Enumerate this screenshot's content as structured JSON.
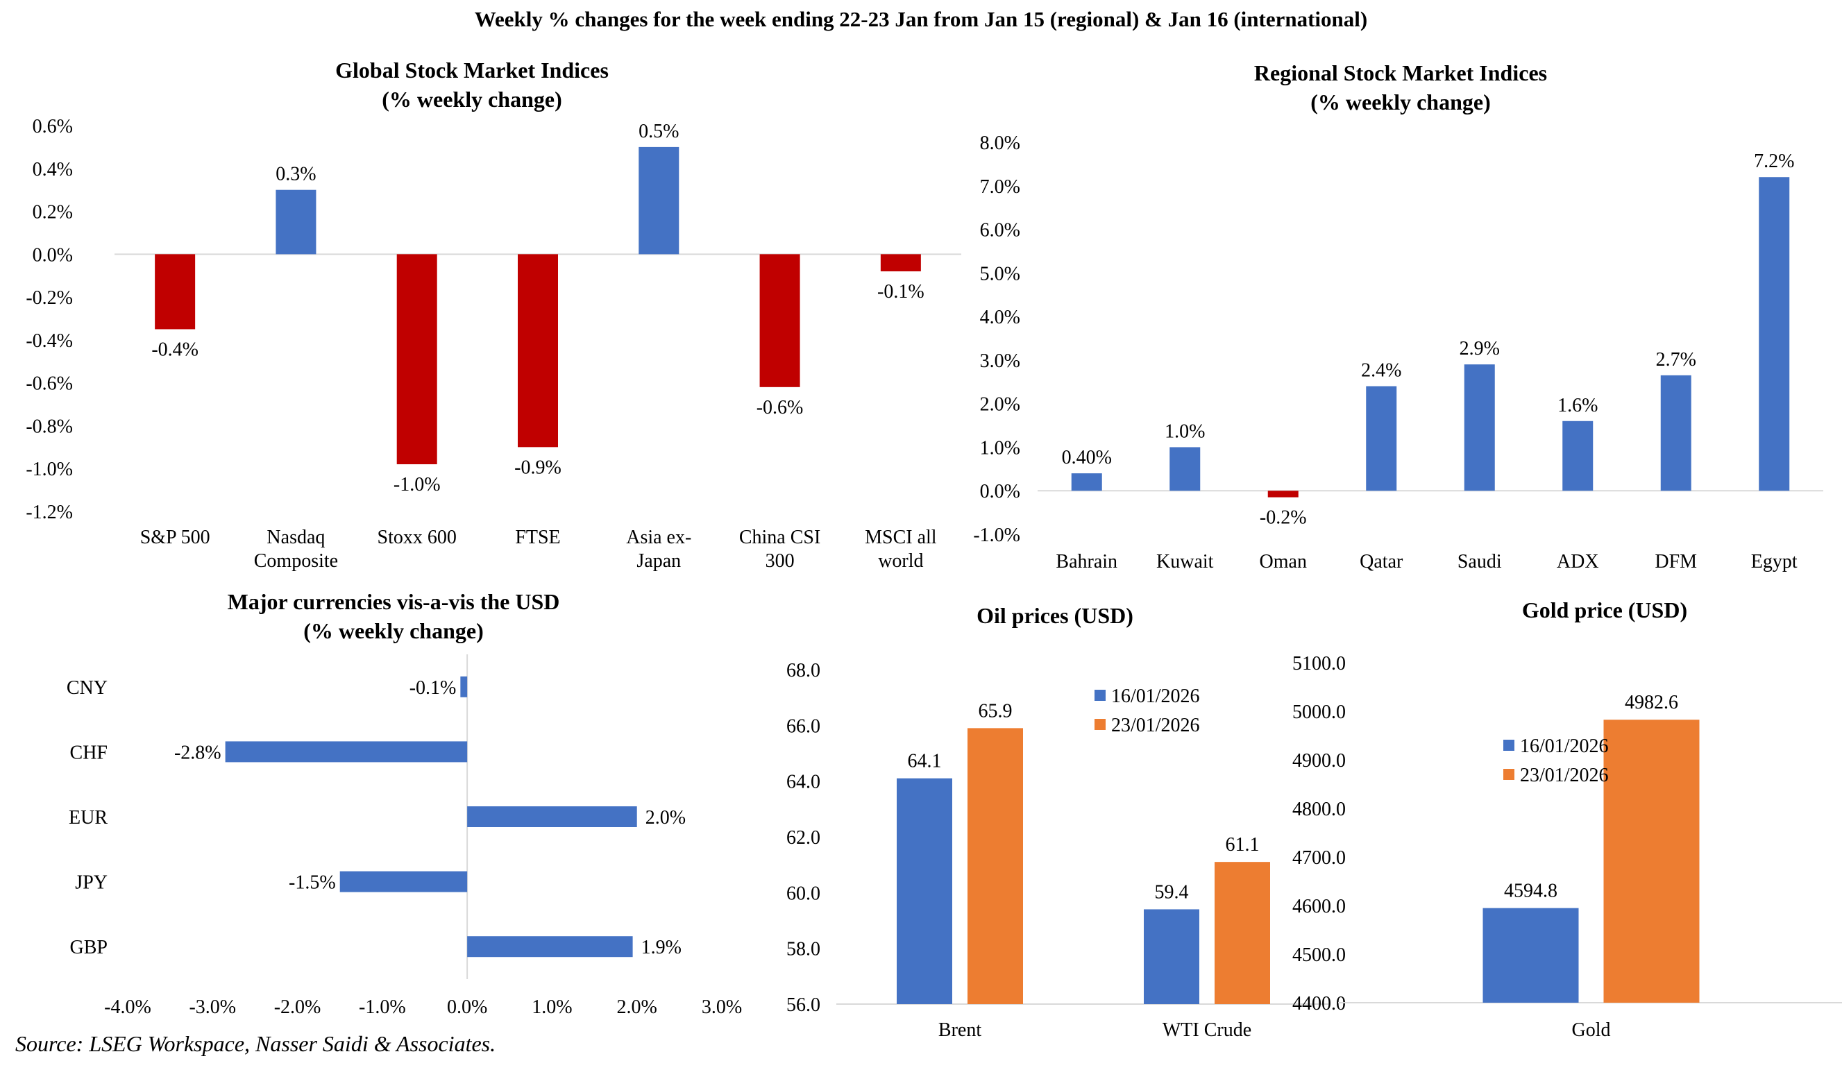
{
  "page": {
    "title": "Weekly % changes for the week ending 22-23 Jan from Jan 15 (regional) & Jan 16 (international)",
    "source": "Source: LSEG Workspace, Nasser Saidi & Associates."
  },
  "colors": {
    "positive": "#4472C4",
    "negative": "#C00000",
    "series2": "#ED7D31",
    "axis": "#D9D9D9"
  },
  "chart_data": [
    {
      "id": "global",
      "type": "bar",
      "title": [
        "Global Stock Market Indices",
        "(% weekly change)"
      ],
      "categories": [
        [
          "S&P 500"
        ],
        [
          "Nasdaq",
          "Composite"
        ],
        [
          "Stoxx 600"
        ],
        [
          "FTSE"
        ],
        [
          "Asia ex-",
          "Japan"
        ],
        [
          "China CSI",
          "300"
        ],
        [
          "MSCI all",
          "world"
        ]
      ],
      "values": [
        -0.35,
        0.3,
        -0.98,
        -0.9,
        0.5,
        -0.62,
        -0.08
      ],
      "labels": [
        "-0.4%",
        "0.3%",
        "-1.0%",
        "-0.9%",
        "0.5%",
        "-0.6%",
        "-0.1%"
      ],
      "yticks": [
        0.6,
        0.4,
        0.2,
        0.0,
        -0.2,
        -0.4,
        -0.6,
        -0.8,
        -1.0,
        -1.2
      ],
      "ytick_labels": [
        "0.6%",
        "0.4%",
        "0.2%",
        "0.0%",
        "-0.2%",
        "-0.4%",
        "-0.6%",
        "-0.8%",
        "-1.0%",
        "-1.2%"
      ],
      "ylim": [
        -1.2,
        0.6
      ],
      "color_by_sign": true
    },
    {
      "id": "regional",
      "type": "bar",
      "title": [
        "Regional Stock Market Indices",
        "(% weekly change)"
      ],
      "categories": [
        [
          "Bahrain"
        ],
        [
          "Kuwait"
        ],
        [
          "Oman"
        ],
        [
          "Qatar"
        ],
        [
          "Saudi"
        ],
        [
          "ADX"
        ],
        [
          "DFM"
        ],
        [
          "Egypt"
        ]
      ],
      "values": [
        0.4,
        1.0,
        -0.15,
        2.4,
        2.9,
        1.6,
        2.65,
        7.2
      ],
      "labels": [
        "0.40%",
        "1.0%",
        "-0.2%",
        "2.4%",
        "2.9%",
        "1.6%",
        "2.7%",
        "7.2%"
      ],
      "yticks": [
        8,
        7,
        6,
        5,
        4,
        3,
        2,
        1,
        0,
        -1
      ],
      "ytick_labels": [
        "8.0%",
        "7.0%",
        "6.0%",
        "5.0%",
        "4.0%",
        "3.0%",
        "2.0%",
        "1.0%",
        "0.0%",
        "-1.0%"
      ],
      "ylim": [
        -1,
        8
      ],
      "color_by_sign": true
    },
    {
      "id": "currencies",
      "type": "bar",
      "orientation": "horizontal",
      "title": [
        "Major currencies vis-a-vis the USD",
        "(% weekly change)"
      ],
      "categories": [
        "CNY",
        "CHF",
        "EUR",
        "JPY",
        "GBP"
      ],
      "values": [
        -0.08,
        -2.85,
        2.0,
        -1.5,
        1.95
      ],
      "labels": [
        "-0.1%",
        "-2.8%",
        "2.0%",
        "-1.5%",
        "1.9%"
      ],
      "xticks": [
        -4,
        -3,
        -2,
        -1,
        0,
        1,
        2,
        3
      ],
      "xtick_labels": [
        "-4.0%",
        "-3.0%",
        "-2.0%",
        "-1.0%",
        "0.0%",
        "1.0%",
        "2.0%",
        "3.0%"
      ],
      "xlim": [
        -4,
        3
      ]
    },
    {
      "id": "oil",
      "type": "bar",
      "title": [
        "Oil prices (USD)"
      ],
      "categories": [
        "Brent",
        "WTI Crude"
      ],
      "series": [
        {
          "name": "16/01/2026",
          "values": [
            64.1,
            59.4
          ],
          "labels": [
            "64.1",
            "59.4"
          ]
        },
        {
          "name": "23/01/2026",
          "values": [
            65.9,
            61.1
          ],
          "labels": [
            "65.9",
            "61.1"
          ]
        }
      ],
      "yticks": [
        68,
        66,
        64,
        62,
        60,
        58,
        56
      ],
      "ytick_labels": [
        "68.0",
        "66.0",
        "64.0",
        "62.0",
        "60.0",
        "58.0",
        "56.0"
      ],
      "ylim": [
        56,
        68
      ],
      "legend": "top-right"
    },
    {
      "id": "gold",
      "type": "bar",
      "title": [
        "Gold price (USD)"
      ],
      "categories": [
        "Gold"
      ],
      "series": [
        {
          "name": "16/01/2026",
          "values": [
            4594.8
          ],
          "labels": [
            "4594.8"
          ]
        },
        {
          "name": "23/01/2026",
          "values": [
            4982.6
          ],
          "labels": [
            "4982.6"
          ]
        }
      ],
      "yticks": [
        5100,
        5000,
        4900,
        4800,
        4700,
        4600,
        4500,
        4400
      ],
      "ytick_labels": [
        "5100.0",
        "5000.0",
        "4900.0",
        "4800.0",
        "4700.0",
        "4600.0",
        "4500.0",
        "4400.0"
      ],
      "ylim": [
        4400,
        5100
      ],
      "legend": "top-left"
    }
  ]
}
